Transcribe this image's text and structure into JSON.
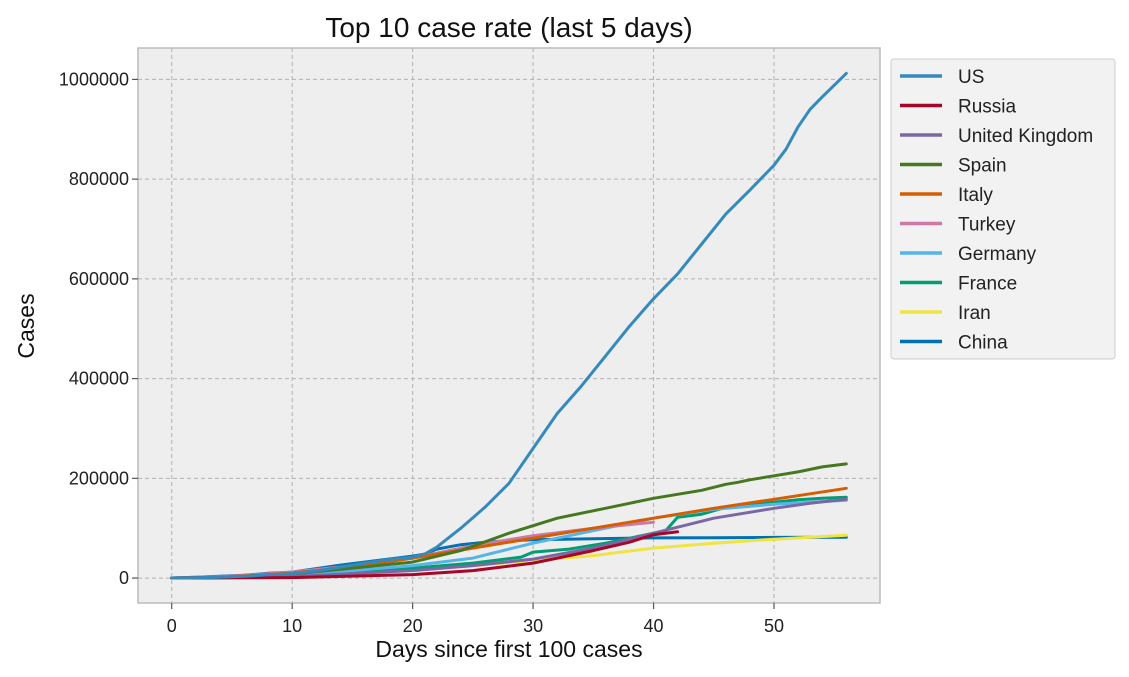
{
  "chart_data": {
    "type": "line",
    "title": "Top 10 case rate (last 5 days)",
    "xlabel": "Days since first 100 cases",
    "ylabel": "Cases",
    "xlim": [
      -2.8,
      58.8
    ],
    "ylim": [
      -50000,
      1063000
    ],
    "xticks": [
      0,
      10,
      20,
      30,
      40,
      50
    ],
    "yticks": [
      0,
      200000,
      400000,
      600000,
      800000,
      1000000
    ],
    "grid": true,
    "legend_position": "outside-right-top",
    "series": [
      {
        "name": "US",
        "color": "#348ABD",
        "x": [
          0,
          2,
          4,
          6,
          8,
          10,
          12,
          14,
          16,
          18,
          20,
          21,
          22,
          24,
          26,
          28,
          30,
          32,
          34,
          36,
          38,
          40,
          42,
          44,
          46,
          48,
          50,
          51,
          52,
          53,
          54,
          56
        ],
        "y": [
          100,
          600,
          1500,
          3500,
          6500,
          9000,
          14000,
          22000,
          30000,
          37000,
          42000,
          48000,
          62000,
          100000,
          142000,
          190000,
          260000,
          330000,
          385000,
          445000,
          505000,
          560000,
          610000,
          670000,
          730000,
          778000,
          828000,
          860000,
          905000,
          940000,
          965000,
          1012000
        ]
      },
      {
        "name": "Russia",
        "color": "#A60628",
        "x": [
          0,
          10,
          20,
          25,
          30,
          35,
          38,
          40,
          42
        ],
        "y": [
          100,
          1000,
          7000,
          15000,
          30000,
          55000,
          72000,
          87000,
          93000
        ]
      },
      {
        "name": "United Kingdom",
        "color": "#7A68A6",
        "x": [
          0,
          10,
          20,
          25,
          30,
          35,
          40,
          45,
          50,
          53,
          56
        ],
        "y": [
          100,
          3000,
          15000,
          25000,
          38000,
          60000,
          90000,
          120000,
          140000,
          150000,
          158000
        ]
      },
      {
        "name": "Spain",
        "color": "#467821",
        "x": [
          0,
          5,
          10,
          15,
          20,
          24,
          28,
          32,
          36,
          38,
          40,
          42,
          44,
          46,
          47,
          48,
          50,
          52,
          54,
          56
        ],
        "y": [
          100,
          1500,
          8000,
          20000,
          32000,
          55000,
          90000,
          120000,
          140000,
          150000,
          160000,
          168000,
          176000,
          188000,
          192000,
          197000,
          205000,
          213000,
          223000,
          229000
        ]
      },
      {
        "name": "Italy",
        "color": "#D55E00",
        "x": [
          0,
          5,
          10,
          15,
          20,
          25,
          30,
          35,
          40,
          45,
          50,
          56
        ],
        "y": [
          100,
          3000,
          10000,
          22000,
          40000,
          60000,
          80000,
          100000,
          120000,
          140000,
          158000,
          180000
        ]
      },
      {
        "name": "Turkey",
        "color": "#CC79A7",
        "x": [
          0,
          5,
          10,
          15,
          20,
          25,
          30,
          35,
          40
        ],
        "y": [
          100,
          4000,
          12000,
          25000,
          40000,
          65000,
          85000,
          100000,
          112000
        ]
      },
      {
        "name": "Germany",
        "color": "#56B4E9",
        "x": [
          0,
          5,
          10,
          15,
          20,
          25,
          28,
          30,
          35,
          40,
          45,
          50,
          56
        ],
        "y": [
          100,
          1500,
          7000,
          15000,
          25000,
          40000,
          58000,
          70000,
          95000,
          120000,
          138000,
          148000,
          156000
        ]
      },
      {
        "name": "France",
        "color": "#009E73",
        "x": [
          0,
          5,
          10,
          15,
          20,
          25,
          29,
          30,
          33,
          36,
          38,
          40,
          41,
          42,
          44,
          46,
          48,
          50,
          52,
          54,
          56
        ],
        "y": [
          100,
          1000,
          5000,
          12000,
          20000,
          30000,
          42000,
          52000,
          58000,
          70000,
          80000,
          90000,
          95000,
          122000,
          128000,
          142000,
          148000,
          152000,
          157000,
          160000,
          162000
        ]
      },
      {
        "name": "Iran",
        "color": "#F0E442",
        "x": [
          0,
          5,
          10,
          15,
          20,
          25,
          30,
          35,
          40,
          45,
          50,
          56
        ],
        "y": [
          100,
          1000,
          5000,
          10000,
          16000,
          25000,
          35000,
          45000,
          60000,
          70000,
          78000,
          86000
        ]
      },
      {
        "name": "China",
        "color": "#0072B2",
        "x": [
          0,
          2,
          4,
          6,
          8,
          10,
          12,
          14,
          16,
          18,
          20,
          21,
          22,
          24,
          26,
          28,
          30,
          35,
          40,
          45,
          50,
          56
        ],
        "y": [
          100,
          1500,
          3500,
          5500,
          9500,
          12000,
          19000,
          26000,
          32000,
          38000,
          44000,
          48000,
          58000,
          67000,
          72000,
          75000,
          77000,
          79000,
          80500,
          81000,
          81600,
          82000
        ]
      }
    ]
  }
}
